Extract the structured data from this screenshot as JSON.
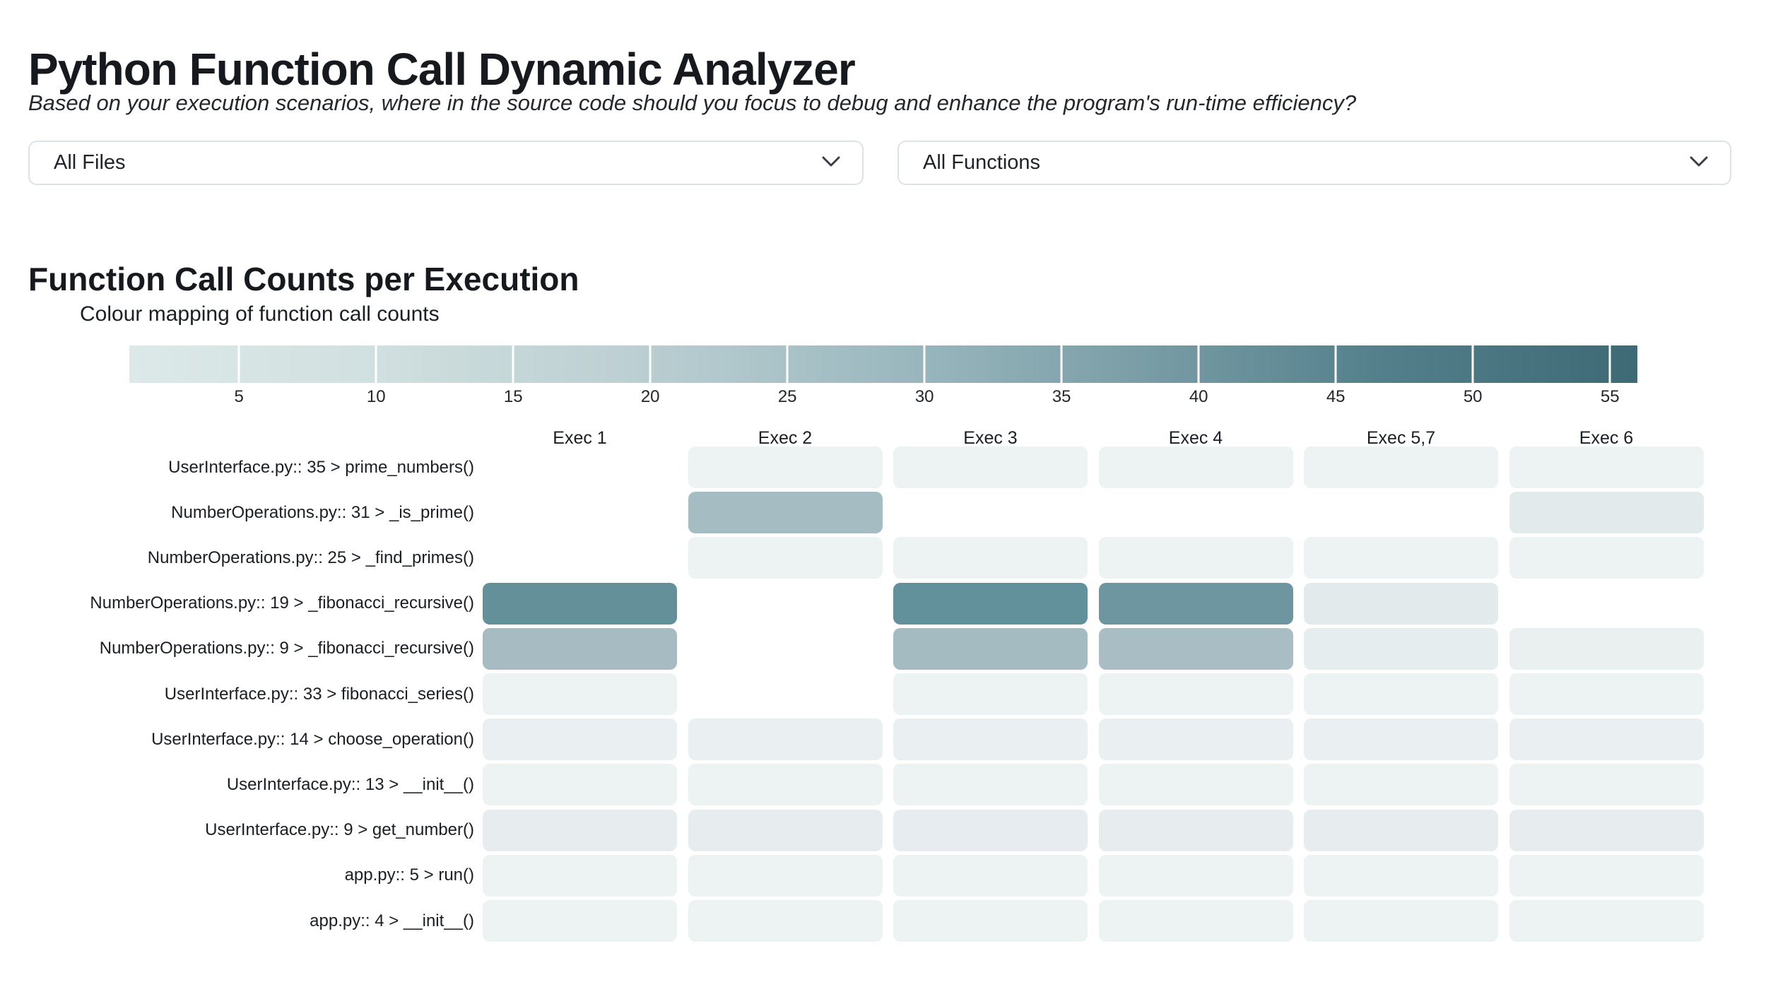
{
  "header": {
    "title": "Python Function Call Dynamic Analyzer",
    "subtitle": "Based on your execution scenarios, where in the source code should you focus to debug and enhance the program's run-time efficiency?"
  },
  "filters": {
    "file_filter": {
      "value": "All Files"
    },
    "function_filter": {
      "value": "All Functions"
    }
  },
  "section": {
    "title": "Function Call Counts per Execution"
  },
  "legend": {
    "title": "Colour mapping of function call counts",
    "domain": [
      1,
      56
    ],
    "ticks": [
      5,
      10,
      15,
      20,
      25,
      30,
      35,
      40,
      45,
      50,
      55
    ],
    "gradient_stops": [
      "#dde9e9",
      "#d0dfdf",
      "#bccfd2",
      "#9dbac0",
      "#7b9ea7",
      "#527f8a",
      "#3d6a74"
    ]
  },
  "chart_data": {
    "type": "heatmap",
    "title": "Function Call Counts per Execution",
    "legend_title": "Colour mapping of function call counts",
    "color_domain": [
      1,
      56
    ],
    "color_range_hex": [
      "#edf2f2",
      "#3d6a74"
    ],
    "values_estimated": true,
    "columns": [
      "Exec 1",
      "Exec 2",
      "Exec 3",
      "Exec 4",
      "Exec 5,7",
      "Exec 6"
    ],
    "rows": [
      {
        "label": "UserInterface.py:: 35 > prime_numbers()",
        "values": [
          null,
          1,
          1,
          1,
          1,
          1
        ],
        "colors": [
          null,
          "#edf2f2",
          "#edf2f2",
          "#edf2f2",
          "#edf2f2",
          "#edf2f2"
        ]
      },
      {
        "label": "NumberOperations.py:: 31 > _is_prime()",
        "values": [
          null,
          21,
          null,
          null,
          null,
          4
        ],
        "colors": [
          null,
          "#a5bcc3",
          null,
          null,
          null,
          "#e3eaec"
        ]
      },
      {
        "label": "NumberOperations.py:: 25 > _find_primes()",
        "values": [
          null,
          1,
          1,
          1,
          1,
          1
        ],
        "colors": [
          null,
          "#edf2f2",
          "#edf2f2",
          "#edf2f2",
          "#edf2f2",
          "#edf2f2"
        ]
      },
      {
        "label": "NumberOperations.py:: 19 > _fibonacci_recursive()",
        "values": [
          41,
          null,
          41,
          38,
          3,
          null
        ],
        "colors": [
          "#64909a",
          null,
          "#62909b",
          "#6e96a0",
          "#e3eaec",
          null
        ]
      },
      {
        "label": "NumberOperations.py:: 9 > _fibonacci_recursive()",
        "values": [
          21,
          null,
          21,
          20,
          2,
          1
        ],
        "colors": [
          "#a6bcc2",
          null,
          "#a4bbc2",
          "#a9bec4",
          "#e6edee",
          "#eaf0f0"
        ]
      },
      {
        "label": "UserInterface.py:: 33 > fibonacci_series()",
        "values": [
          1,
          null,
          1,
          1,
          1,
          1
        ],
        "colors": [
          "#edf2f2",
          null,
          "#edf2f2",
          "#edf2f2",
          "#edf2f2",
          "#edf2f2"
        ]
      },
      {
        "label": "UserInterface.py:: 14 > choose_operation()",
        "values": [
          2,
          2,
          2,
          2,
          2,
          2
        ],
        "colors": [
          "#eaf0f1",
          "#eaf0f1",
          "#eaf0f1",
          "#eaf0f1",
          "#eaf0f1",
          "#eaf0f1"
        ]
      },
      {
        "label": "UserInterface.py:: 13 > __init__()",
        "values": [
          1,
          1,
          1,
          1,
          1,
          1
        ],
        "colors": [
          "#edf2f2",
          "#edf2f2",
          "#edf2f2",
          "#edf2f2",
          "#edf2f2",
          "#edf2f2"
        ]
      },
      {
        "label": "UserInterface.py:: 9 > get_number()",
        "values": [
          3,
          3,
          3,
          3,
          3,
          3
        ],
        "colors": [
          "#e7edef",
          "#e7edef",
          "#e6ecef",
          "#e7edef",
          "#e7edef",
          "#e7edef"
        ]
      },
      {
        "label": "app.py:: 5 > run()",
        "values": [
          1,
          1,
          1,
          1,
          1,
          1
        ],
        "colors": [
          "#edf2f2",
          "#edf2f2",
          "#edf2f2",
          "#edf2f2",
          "#edf2f2",
          "#edf2f2"
        ]
      },
      {
        "label": "app.py:: 4 > __init__()",
        "values": [
          1,
          1,
          1,
          1,
          1,
          1
        ],
        "colors": [
          "#edf2f2",
          "#edf2f2",
          "#edf2f2",
          "#edf2f2",
          "#edf2f2",
          "#edf2f2"
        ]
      }
    ]
  }
}
